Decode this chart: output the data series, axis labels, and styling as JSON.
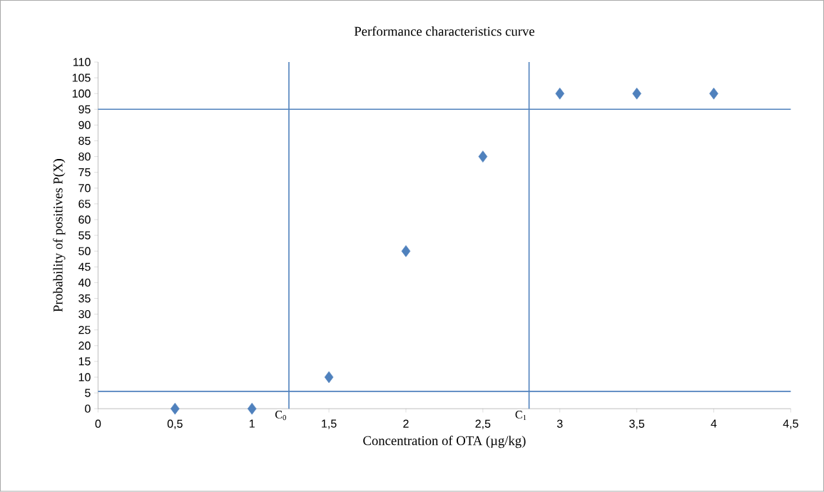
{
  "chart_data": {
    "type": "scatter",
    "title": "Performance characteristics curve",
    "xlabel": "Concentration of OTA (µg/kg)",
    "ylabel": "Probability of positives P(X)",
    "series": [
      {
        "color": "#4f81bd",
        "x": [
          0.5,
          1,
          1.5,
          2,
          2.5,
          3,
          3.5,
          4
        ],
        "values": [
          0,
          0,
          10,
          50,
          80,
          100,
          100,
          100
        ]
      }
    ],
    "marker": "diamond",
    "xlim": [
      0,
      4.5
    ],
    "ylim": [
      0,
      110
    ],
    "xticks": [
      0,
      {
        "value": 0.5,
        "label": "0,5"
      },
      1,
      {
        "value": 1.5,
        "label": "1,5"
      },
      2,
      {
        "value": 2.5,
        "label": "2,5"
      },
      3,
      {
        "value": 3.5,
        "label": "3,5"
      },
      4,
      {
        "value": 4.5,
        "label": "4,5"
      }
    ],
    "yticks": [
      0,
      5,
      10,
      15,
      20,
      25,
      30,
      35,
      40,
      45,
      50,
      55,
      60,
      65,
      70,
      75,
      80,
      85,
      90,
      95,
      100,
      105,
      110
    ],
    "grid": false,
    "ref_lines": [
      {
        "axis": "y",
        "value": 95,
        "color": "#4f81bd"
      },
      {
        "axis": "y",
        "value": 5.5,
        "color": "#4f81bd"
      },
      {
        "axis": "x",
        "value": 1.24,
        "label": "C$_{0}$",
        "color": "#4f81bd"
      },
      {
        "axis": "x",
        "value": 2.8,
        "label": "C$_{1}$",
        "color": "#4f81bd"
      }
    ]
  }
}
